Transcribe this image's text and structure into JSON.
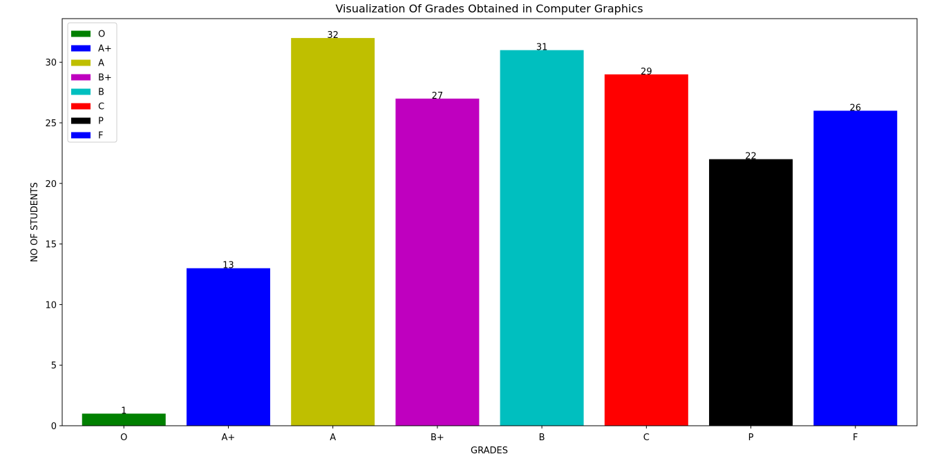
{
  "chart_data": {
    "type": "bar",
    "title": "Visualization Of Grades Obtained in Computer Graphics",
    "xlabel": "GRADES",
    "ylabel": "NO OF STUDENTS",
    "categories": [
      "O",
      "A+",
      "A",
      "B+",
      "B",
      "C",
      "P",
      "F"
    ],
    "values": [
      1,
      13,
      32,
      27,
      31,
      29,
      22,
      26
    ],
    "colors": [
      "#008000",
      "#0000ff",
      "#bfbf00",
      "#bf00bf",
      "#00bfbf",
      "#ff0000",
      "#000000",
      "#0000ff"
    ],
    "ylim": [
      0,
      33.6
    ],
    "yticks": [
      0,
      5,
      10,
      15,
      20,
      25,
      30
    ],
    "grid": false,
    "legend": {
      "placement": "upper-left",
      "entries": [
        "O",
        "A+",
        "A",
        "B+",
        "B",
        "C",
        "P",
        "F"
      ]
    }
  }
}
